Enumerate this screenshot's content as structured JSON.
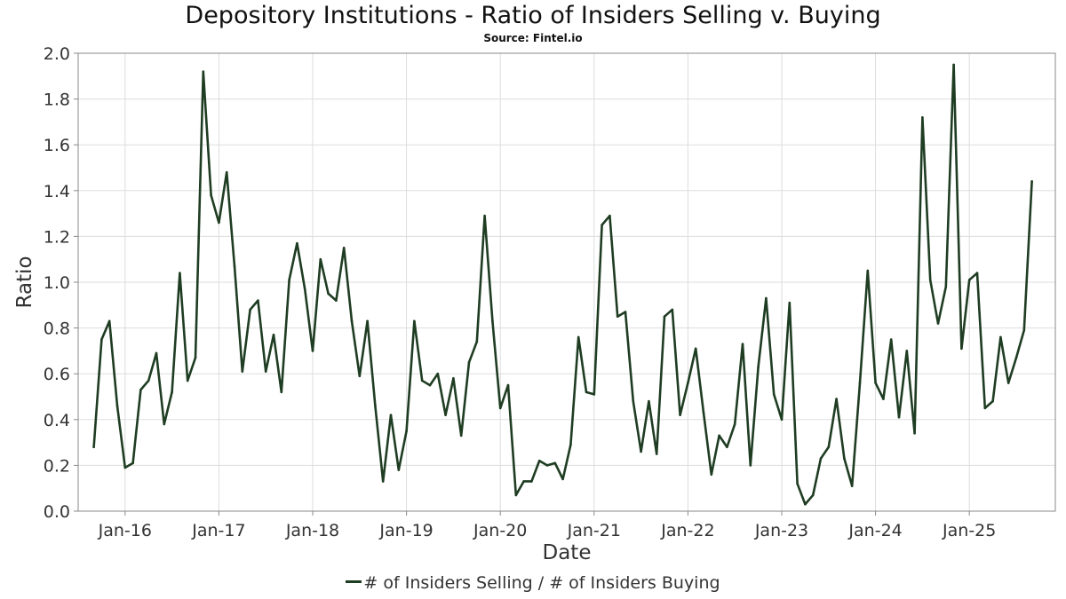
{
  "chart_data": {
    "type": "line",
    "title": "Depository Institutions - Ratio of Insiders Selling v. Buying",
    "subtitle": "Source: Fintel.io",
    "xlabel": "Date",
    "ylabel": "Ratio",
    "ylim": [
      0,
      2.0
    ],
    "yticks": [
      "0.0",
      "0.2",
      "0.4",
      "0.6",
      "0.8",
      "1.0",
      "1.2",
      "1.4",
      "1.6",
      "1.8",
      "2.0"
    ],
    "xticks": [
      "Jan-16",
      "Jan-17",
      "Jan-18",
      "Jan-19",
      "Jan-20",
      "Jan-21",
      "Jan-22",
      "Jan-23",
      "Jan-24",
      "Jan-25"
    ],
    "xlim": [
      "2015-07-01",
      "2025-12-01"
    ],
    "grid": true,
    "legend_position": "bottom-center",
    "color": "#1f3d22",
    "series": [
      {
        "name": "# of Insiders Selling / # of Insiders Buying",
        "x": [
          "2015-09",
          "2015-10",
          "2015-11",
          "2015-12",
          "2016-01",
          "2016-02",
          "2016-03",
          "2016-04",
          "2016-05",
          "2016-06",
          "2016-07",
          "2016-08",
          "2016-09",
          "2016-10",
          "2016-11",
          "2016-12",
          "2017-01",
          "2017-02",
          "2017-03",
          "2017-04",
          "2017-05",
          "2017-06",
          "2017-07",
          "2017-08",
          "2017-09",
          "2017-10",
          "2017-11",
          "2017-12",
          "2018-01",
          "2018-02",
          "2018-03",
          "2018-04",
          "2018-05",
          "2018-06",
          "2018-07",
          "2018-08",
          "2018-09",
          "2018-10",
          "2018-11",
          "2018-12",
          "2019-01",
          "2019-02",
          "2019-03",
          "2019-04",
          "2019-05",
          "2019-06",
          "2019-07",
          "2019-08",
          "2019-09",
          "2019-10",
          "2019-11",
          "2019-12",
          "2020-01",
          "2020-02",
          "2020-03",
          "2020-04",
          "2020-05",
          "2020-06",
          "2020-07",
          "2020-08",
          "2020-09",
          "2020-10",
          "2020-11",
          "2020-12",
          "2021-01",
          "2021-02",
          "2021-03",
          "2021-04",
          "2021-05",
          "2021-06",
          "2021-07",
          "2021-08",
          "2021-09",
          "2021-10",
          "2021-11",
          "2021-12",
          "2022-01",
          "2022-02",
          "2022-03",
          "2022-04",
          "2022-05",
          "2022-06",
          "2022-07",
          "2022-08",
          "2022-09",
          "2022-10",
          "2022-11",
          "2022-12",
          "2023-01",
          "2023-02",
          "2023-03",
          "2023-04",
          "2023-05",
          "2023-06",
          "2023-07",
          "2023-08",
          "2023-09",
          "2023-10",
          "2023-11",
          "2023-12",
          "2024-01",
          "2024-02",
          "2024-03",
          "2024-04",
          "2024-05",
          "2024-06",
          "2024-07",
          "2024-08",
          "2024-09",
          "2024-10",
          "2024-11",
          "2024-12",
          "2025-01",
          "2025-02",
          "2025-03",
          "2025-04",
          "2025-05",
          "2025-06",
          "2025-07",
          "2025-08",
          "2025-09"
        ],
        "values": [
          0.28,
          0.75,
          0.83,
          0.46,
          0.19,
          0.21,
          0.53,
          0.57,
          0.69,
          0.38,
          0.52,
          1.04,
          0.57,
          0.67,
          1.92,
          1.38,
          1.26,
          1.48,
          1.07,
          0.61,
          0.88,
          0.92,
          0.61,
          0.77,
          0.52,
          1.01,
          1.17,
          0.97,
          0.7,
          1.1,
          0.95,
          0.92,
          1.15,
          0.83,
          0.59,
          0.83,
          0.46,
          0.13,
          0.42,
          0.18,
          0.35,
          0.83,
          0.57,
          0.55,
          0.6,
          0.42,
          0.58,
          0.33,
          0.65,
          0.74,
          1.29,
          0.83,
          0.45,
          0.55,
          0.07,
          0.13,
          0.13,
          0.22,
          0.2,
          0.21,
          0.14,
          0.29,
          0.76,
          0.52,
          0.51,
          1.25,
          1.29,
          0.85,
          0.87,
          0.48,
          0.26,
          0.48,
          0.25,
          0.85,
          0.88,
          0.42,
          0.56,
          0.71,
          0.43,
          0.16,
          0.33,
          0.28,
          0.38,
          0.73,
          0.2,
          0.63,
          0.93,
          0.51,
          0.4,
          0.91,
          0.12,
          0.03,
          0.07,
          0.23,
          0.28,
          0.49,
          0.23,
          0.11,
          0.56,
          1.05,
          0.56,
          0.49,
          0.75,
          0.41,
          0.7,
          0.34,
          1.72,
          1.01,
          0.82,
          0.98,
          1.95,
          0.71,
          1.01,
          1.04,
          0.45,
          0.48,
          0.76,
          0.56,
          0.67,
          0.79,
          1.44
        ]
      }
    ]
  }
}
